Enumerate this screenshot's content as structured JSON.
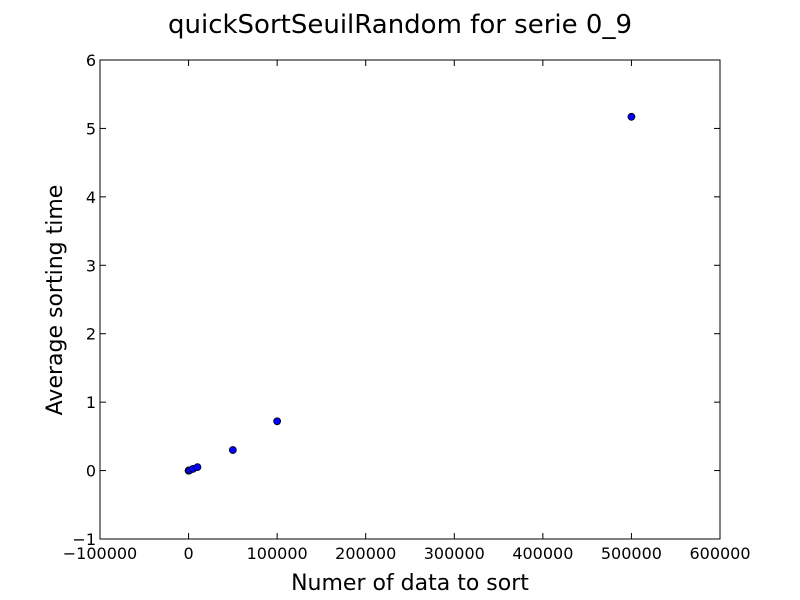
{
  "chart_data": {
    "type": "scatter",
    "title": "quickSortSeuilRandom for serie 0_9",
    "xlabel": "Numer of data to sort",
    "ylabel": "Average sorting time",
    "xlim": [
      -100000,
      600000
    ],
    "ylim": [
      -1,
      6
    ],
    "xticks": [
      -100000,
      0,
      100000,
      200000,
      300000,
      400000,
      500000,
      600000
    ],
    "xtick_labels": [
      "−100000",
      "0",
      "100000",
      "200000",
      "300000",
      "400000",
      "500000",
      "600000"
    ],
    "yticks": [
      -1,
      0,
      1,
      2,
      3,
      4,
      5,
      6
    ],
    "ytick_labels": [
      "−1",
      "0",
      "1",
      "2",
      "3",
      "4",
      "5",
      "6"
    ],
    "grid": false,
    "legend": "none",
    "marker_color": "#0000ff",
    "marker_edge_color": "#000000",
    "series": [
      {
        "x": [
          10,
          100,
          1000,
          5000,
          10000,
          50000,
          100000,
          500000
        ],
        "y": [
          0.0,
          0.0,
          0.003,
          0.025,
          0.05,
          0.3,
          0.72,
          5.17
        ]
      }
    ]
  }
}
